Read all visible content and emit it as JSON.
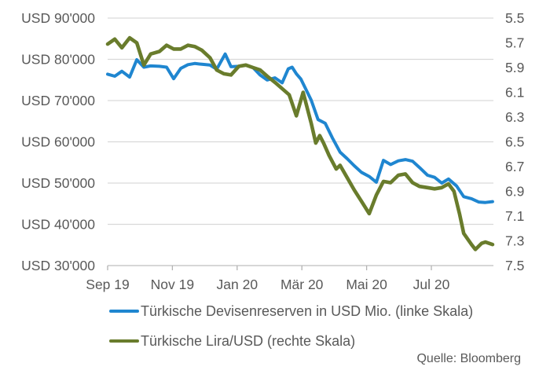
{
  "source": "Quelle: Bloomberg",
  "colors": {
    "reserves_blue": "#1f86d0",
    "lira_green": "#697c2c",
    "text_gray": "#595959",
    "gridline": "#d9d9d9",
    "axis_line": "#bfbfbf",
    "tick_mark": "#b3b3b3"
  },
  "chart_data": {
    "type": "line",
    "title": "",
    "x_unit": "months after the 'Sep 19' tick (0 = Sep 19, 2 = Nov 19, 4 = Jan 20, 6 = Mär 20, 8 = Mai 20, 10 = Jul 20, ~11.9 = early Sep 20)",
    "grid": "horizontal-only",
    "legend_position": "bottom-left",
    "x_ticks": [
      {
        "label": "Sep 19",
        "m": 0
      },
      {
        "label": "Nov 19",
        "m": 2
      },
      {
        "label": "Jan 20",
        "m": 4
      },
      {
        "label": "Mär 20",
        "m": 6
      },
      {
        "label": "Mai 20",
        "m": 8
      },
      {
        "label": "Jul 20",
        "m": 10
      }
    ],
    "left_axis": {
      "top": 90000,
      "bottom": 30000,
      "ticks": [
        {
          "label": "USD 90'000",
          "value": 90000
        },
        {
          "label": "USD 80'000",
          "value": 80000
        },
        {
          "label": "USD 70'000",
          "value": 70000
        },
        {
          "label": "USD 60'000",
          "value": 60000
        },
        {
          "label": "USD 50'000",
          "value": 50000
        },
        {
          "label": "USD 40'000",
          "value": 40000
        },
        {
          "label": "USD 30'000",
          "value": 30000
        }
      ]
    },
    "right_axis": {
      "top": 5.5,
      "bottom": 7.5,
      "ticks": [
        {
          "label": "5.5",
          "value": 5.5
        },
        {
          "label": "5.7",
          "value": 5.7
        },
        {
          "label": "5.9",
          "value": 5.9
        },
        {
          "label": "6.1",
          "value": 6.1
        },
        {
          "label": "6.3",
          "value": 6.3
        },
        {
          "label": "6.5",
          "value": 6.5
        },
        {
          "label": "6.7",
          "value": 6.7
        },
        {
          "label": "6.9",
          "value": 6.9
        },
        {
          "label": "7.1",
          "value": 7.1
        },
        {
          "label": "7.3",
          "value": 7.3
        },
        {
          "label": "7.5",
          "value": 7.5
        }
      ]
    },
    "series": [
      {
        "name": "Türkische Devisenreserven in USD Mio. (linke Skala)",
        "axis": "left",
        "color_key": "reserves_blue",
        "points": [
          [
            0,
            76400
          ],
          [
            0.22,
            75900
          ],
          [
            0.44,
            77100
          ],
          [
            0.68,
            75700
          ],
          [
            0.9,
            79900
          ],
          [
            1.12,
            78100
          ],
          [
            1.33,
            78400
          ],
          [
            1.6,
            78300
          ],
          [
            1.82,
            78100
          ],
          [
            2.04,
            75300
          ],
          [
            2.26,
            77800
          ],
          [
            2.48,
            78700
          ],
          [
            2.69,
            79000
          ],
          [
            2.91,
            78800
          ],
          [
            3.16,
            78600
          ],
          [
            3.37,
            77600
          ],
          [
            3.63,
            81300
          ],
          [
            3.81,
            78200
          ],
          [
            4.05,
            78300
          ],
          [
            4.27,
            78600
          ],
          [
            4.49,
            78000
          ],
          [
            4.71,
            76200
          ],
          [
            4.93,
            75000
          ],
          [
            5.17,
            75500
          ],
          [
            5.39,
            74300
          ],
          [
            5.58,
            77700
          ],
          [
            5.7,
            78100
          ],
          [
            5.83,
            76500
          ],
          [
            5.97,
            75200
          ],
          [
            6.09,
            73300
          ],
          [
            6.29,
            70100
          ],
          [
            6.5,
            65400
          ],
          [
            6.72,
            64500
          ],
          [
            6.94,
            61000
          ],
          [
            7.18,
            57500
          ],
          [
            7.4,
            55900
          ],
          [
            7.62,
            54200
          ],
          [
            7.84,
            52600
          ],
          [
            8.08,
            51600
          ],
          [
            8.3,
            50200
          ],
          [
            8.52,
            55500
          ],
          [
            8.74,
            54500
          ],
          [
            8.98,
            55400
          ],
          [
            9.2,
            55700
          ],
          [
            9.42,
            55300
          ],
          [
            9.63,
            53800
          ],
          [
            9.88,
            51900
          ],
          [
            10.1,
            51400
          ],
          [
            10.32,
            50000
          ],
          [
            10.53,
            51000
          ],
          [
            10.78,
            49300
          ],
          [
            11,
            46700
          ],
          [
            11.24,
            46200
          ],
          [
            11.46,
            45400
          ],
          [
            11.67,
            45300
          ],
          [
            11.89,
            45500
          ]
        ]
      },
      {
        "name": "Türkische Lira/USD (rechte Skala)",
        "axis": "right",
        "color_key": "lira_green",
        "points": [
          [
            0,
            5.71
          ],
          [
            0.22,
            5.67
          ],
          [
            0.44,
            5.74
          ],
          [
            0.68,
            5.66
          ],
          [
            0.9,
            5.7
          ],
          [
            1.12,
            5.88
          ],
          [
            1.33,
            5.79
          ],
          [
            1.6,
            5.77
          ],
          [
            1.82,
            5.72
          ],
          [
            2.04,
            5.75
          ],
          [
            2.26,
            5.75
          ],
          [
            2.48,
            5.72
          ],
          [
            2.69,
            5.73
          ],
          [
            2.91,
            5.76
          ],
          [
            3.16,
            5.82
          ],
          [
            3.37,
            5.92
          ],
          [
            3.59,
            5.95
          ],
          [
            3.81,
            5.96
          ],
          [
            4.05,
            5.89
          ],
          [
            4.27,
            5.88
          ],
          [
            4.49,
            5.9
          ],
          [
            4.71,
            5.92
          ],
          [
            4.93,
            5.97
          ],
          [
            5.17,
            6.02
          ],
          [
            5.39,
            6.07
          ],
          [
            5.61,
            6.12
          ],
          [
            5.83,
            6.29
          ],
          [
            6.04,
            6.1
          ],
          [
            6.29,
            6.35
          ],
          [
            6.43,
            6.51
          ],
          [
            6.55,
            6.45
          ],
          [
            6.67,
            6.51
          ],
          [
            6.84,
            6.61
          ],
          [
            7.06,
            6.72
          ],
          [
            7.18,
            6.69
          ],
          [
            7.4,
            6.79
          ],
          [
            7.62,
            6.89
          ],
          [
            7.84,
            6.98
          ],
          [
            8.08,
            7.08
          ],
          [
            8.3,
            6.93
          ],
          [
            8.52,
            6.82
          ],
          [
            8.74,
            6.83
          ],
          [
            8.98,
            6.77
          ],
          [
            9.2,
            6.76
          ],
          [
            9.42,
            6.83
          ],
          [
            9.63,
            6.86
          ],
          [
            9.88,
            6.87
          ],
          [
            10.1,
            6.88
          ],
          [
            10.32,
            6.87
          ],
          [
            10.53,
            6.84
          ],
          [
            10.7,
            6.9
          ],
          [
            10.87,
            7.08
          ],
          [
            11,
            7.24
          ],
          [
            11.24,
            7.33
          ],
          [
            11.36,
            7.37
          ],
          [
            11.55,
            7.32
          ],
          [
            11.67,
            7.31
          ],
          [
            11.89,
            7.33
          ]
        ]
      }
    ]
  }
}
